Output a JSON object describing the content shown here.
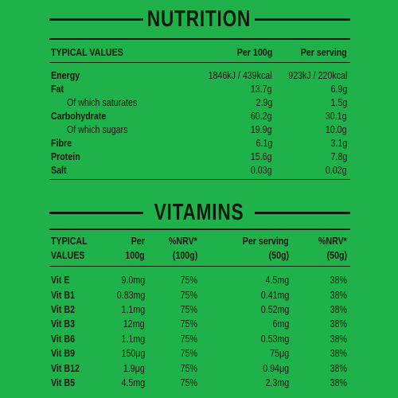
{
  "nutrition": {
    "title": "NUTRITION",
    "headers": {
      "typical": "TYPICAL VALUES",
      "per100g": "Per 100g",
      "perServing": "Per serving"
    },
    "rows": [
      {
        "label": "Energy",
        "bold": true,
        "per100g": "1846kJ / 439kcal",
        "perServing": "923kJ / 220kcal"
      },
      {
        "label": "Fat",
        "bold": true,
        "per100g": "13.7g",
        "perServing": "6.9g"
      },
      {
        "label": "Of which saturates",
        "bold": false,
        "per100g": "2.9g",
        "perServing": "1.5g"
      },
      {
        "label": "Carbohydrate",
        "bold": true,
        "per100g": "60.2g",
        "perServing": "30.1g"
      },
      {
        "label": "Of which sugars",
        "bold": false,
        "per100g": "19.9g",
        "perServing": "10.0g"
      },
      {
        "label": "Fibre",
        "bold": true,
        "per100g": "6.1g",
        "perServing": "3.1g"
      },
      {
        "label": "Protein",
        "bold": true,
        "per100g": "15.6g",
        "perServing": "7.8g"
      },
      {
        "label": "Salt",
        "bold": true,
        "per100g": "0.03g",
        "perServing": "0.02g"
      }
    ]
  },
  "vitamins": {
    "title": "VITAMINS",
    "headers": {
      "typical1": "TYPICAL",
      "typical2": "VALUES",
      "per1": "Per",
      "per2": "100g",
      "nrv1": "%NRV*",
      "nrv2": "(100g)",
      "serving1": "Per serving",
      "serving2": "(50g)",
      "nrvServing1": "%NRV*",
      "nrvServing2": "(50g)"
    },
    "rows": [
      {
        "label": "Vit E",
        "per100g": "9.0mg",
        "nrv100g": "75%",
        "perServing": "4.5mg",
        "nrvServing": "38%"
      },
      {
        "label": "Vit B1",
        "per100g": "0.83mg",
        "nrv100g": "75%",
        "perServing": "0.41mg",
        "nrvServing": "38%"
      },
      {
        "label": "Vit B2",
        "per100g": "1.1mg",
        "nrv100g": "75%",
        "perServing": "0.52mg",
        "nrvServing": "38%"
      },
      {
        "label": "Vit B3",
        "per100g": "12mg",
        "nrv100g": "75%",
        "perServing": "6mg",
        "nrvServing": "38%"
      },
      {
        "label": "Vit B6",
        "per100g": "1.1mg",
        "nrv100g": "75%",
        "perServing": "0.53mg",
        "nrvServing": "38%"
      },
      {
        "label": "Vit B9",
        "per100g": "150μg",
        "nrv100g": "75%",
        "perServing": "75μg",
        "nrvServing": "38%"
      },
      {
        "label": "Vit B12",
        "per100g": "1.9μg",
        "nrv100g": "75%",
        "perServing": "0.94μg",
        "nrvServing": "38%"
      },
      {
        "label": "Vit B5",
        "per100g": "4.5mg",
        "nrv100g": "75%",
        "perServing": "2.3mg",
        "nrvServing": "38%"
      }
    ]
  },
  "colors": {
    "background": "#1fb24a",
    "text": "#0c1a10"
  }
}
